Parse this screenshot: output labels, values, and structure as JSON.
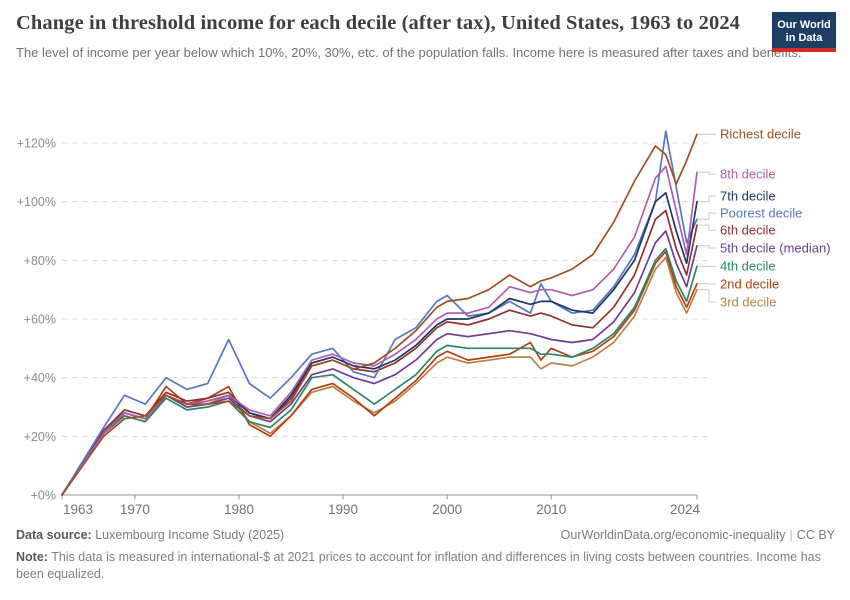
{
  "header": {
    "title": "Change in threshold income for each decile (after tax), United States, 1963 to 2024",
    "subtitle": "The level of income per year below which 10%, 20%, 30%, etc. of the population falls. Income here is measured after taxes and benefits.",
    "logo": {
      "line1": "Our World",
      "line2": "in Data"
    }
  },
  "footer": {
    "source_label": "Data source:",
    "source_value": "Luxembourg Income Study (2025)",
    "link": "OurWorldinData.org/economic-inequality",
    "separator": "|",
    "license": "CC BY",
    "note_label": "Note:",
    "note_text": "This data is measured in international-$ at 2021 prices to account for inflation and differences in living costs between countries. Income has been equalized."
  },
  "chart_data": {
    "type": "line",
    "title": "Change in threshold income for each decile (after tax), United States, 1963 to 2024",
    "xlabel": "",
    "ylabel": "",
    "xlim": [
      1963,
      2024
    ],
    "ylim": [
      0,
      128
    ],
    "grid": "horizontal-dashed",
    "legend_position": "right",
    "x_ticks": [
      {
        "year": 1963,
        "label": "1963"
      },
      {
        "year": 1970,
        "label": "1970"
      },
      {
        "year": 1980,
        "label": "1980"
      },
      {
        "year": 1990,
        "label": "1990"
      },
      {
        "year": 2000,
        "label": "2000"
      },
      {
        "year": 2010,
        "label": "2010"
      },
      {
        "year": 2024,
        "label": "2024"
      }
    ],
    "y_ticks": [
      {
        "value": 0,
        "label": "+0%"
      },
      {
        "value": 20,
        "label": "+20%"
      },
      {
        "value": 40,
        "label": "+40%"
      },
      {
        "value": 60,
        "label": "+60%"
      },
      {
        "value": 80,
        "label": "+80%"
      },
      {
        "value": 100,
        "label": "+100%"
      },
      {
        "value": 120,
        "label": "+120%"
      }
    ],
    "x": [
      1963,
      1967,
      1969,
      1971,
      1973,
      1975,
      1977,
      1979,
      1981,
      1983,
      1985,
      1987,
      1989,
      1991,
      1993,
      1995,
      1997,
      1999,
      2000,
      2002,
      2004,
      2006,
      2008,
      2009,
      2010,
      2012,
      2014,
      2016,
      2018,
      2020,
      2021,
      2022,
      2023,
      2024
    ],
    "series": [
      {
        "name": "Richest decile",
        "color": "#9C5129",
        "label_at": 123.0,
        "values": [
          0,
          20,
          26,
          27,
          34,
          31,
          31,
          32,
          27,
          26,
          32,
          44,
          46,
          43,
          45,
          50,
          56,
          64,
          66,
          67,
          70,
          75,
          71,
          73,
          74,
          77,
          82,
          93,
          107,
          119,
          116,
          106,
          114,
          123
        ]
      },
      {
        "name": "8th decile",
        "color": "#B05EB0",
        "label_at": 109.4,
        "values": [
          0,
          21,
          28,
          26,
          34,
          31,
          32,
          34,
          29,
          27,
          35,
          46,
          48,
          45,
          44,
          48,
          53,
          60,
          62,
          62,
          64,
          71,
          69,
          70,
          70,
          68,
          70,
          77,
          88,
          108,
          112,
          97,
          82,
          110
        ]
      },
      {
        "name": "7th decile",
        "color": "#1F3864",
        "label_at": 101.9,
        "values": [
          0,
          21,
          28,
          26,
          34,
          31,
          32,
          34,
          28,
          26,
          34,
          45,
          47,
          44,
          43,
          46,
          51,
          58,
          60,
          60,
          62,
          67,
          65,
          66,
          66,
          63,
          62,
          70,
          80,
          100,
          103,
          90,
          79,
          100
        ]
      },
      {
        "name": "Poorest decile",
        "color": "#5878BE",
        "label_at": 96.1,
        "values": [
          0,
          23,
          34,
          31,
          40,
          36,
          38,
          53,
          38,
          33,
          40,
          48,
          50,
          42,
          40,
          53,
          57,
          66,
          68,
          61,
          62,
          66,
          62,
          72,
          66,
          62,
          63,
          71,
          82,
          100,
          124,
          105,
          86,
          94
        ]
      },
      {
        "name": "6th decile",
        "color": "#8F3134",
        "label_at": 90.3,
        "values": [
          0,
          22,
          29,
          27,
          35,
          32,
          33,
          35,
          28,
          26,
          33,
          44,
          46,
          43,
          42,
          45,
          50,
          57,
          59,
          58,
          60,
          63,
          61,
          62,
          61,
          58,
          57,
          64,
          75,
          94,
          97,
          84,
          75,
          92
        ]
      },
      {
        "name": "5th decile (median)",
        "color": "#6D3E91",
        "label_at": 84.2,
        "values": [
          0,
          21,
          28,
          26,
          34,
          30,
          31,
          33,
          27,
          25,
          31,
          41,
          43,
          40,
          38,
          41,
          46,
          53,
          55,
          54,
          55,
          56,
          55,
          54,
          53,
          52,
          53,
          59,
          69,
          86,
          90,
          79,
          71,
          85
        ]
      },
      {
        "name": "4th decile",
        "color": "#2F8568",
        "label_at": 78.0,
        "values": [
          0,
          21,
          27,
          25,
          33,
          29,
          30,
          32,
          25,
          23,
          29,
          40,
          41,
          36,
          31,
          36,
          41,
          49,
          51,
          50,
          50,
          50,
          50,
          48,
          48,
          47,
          50,
          55,
          64,
          80,
          84,
          73,
          66,
          78
        ]
      },
      {
        "name": "2nd decile",
        "color": "#B34014",
        "label_at": 71.9,
        "values": [
          0,
          22,
          28,
          26,
          37,
          31,
          33,
          37,
          24,
          20,
          27,
          36,
          38,
          33,
          27,
          33,
          39,
          47,
          49,
          46,
          47,
          48,
          52,
          46,
          50,
          47,
          49,
          54,
          63,
          79,
          83,
          71,
          64,
          72
        ]
      },
      {
        "name": "3rd decile",
        "color": "#B5854C",
        "label_at": 65.8,
        "values": [
          0,
          21,
          27,
          25,
          34,
          30,
          31,
          34,
          25,
          21,
          27,
          35,
          37,
          32,
          28,
          32,
          38,
          45,
          47,
          45,
          46,
          47,
          47,
          43,
          45,
          44,
          47,
          52,
          61,
          77,
          81,
          69,
          62,
          70
        ]
      }
    ]
  }
}
